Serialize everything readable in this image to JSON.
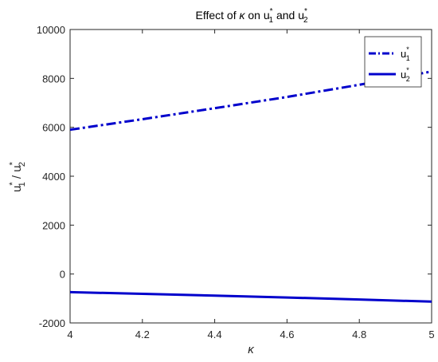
{
  "chart_data": {
    "type": "line",
    "title": {
      "main": "Effect of ",
      "symbol": "κ",
      "mid": " on u",
      "s1": "*",
      "i1": "1",
      "and": " and u",
      "s2": "*",
      "i2": "2"
    },
    "xlabel": "κ",
    "ylabel": {
      "u": "u",
      "sup1": "*",
      "sub1": "1",
      "slash": " / u",
      "sup2": "*",
      "sub2": "2"
    },
    "xlim": [
      4,
      5
    ],
    "ylim": [
      -2000,
      10000
    ],
    "xticks": [
      "4",
      "4.2",
      "4.4",
      "4.6",
      "4.8",
      "5"
    ],
    "yticks": [
      "-2000",
      "0",
      "2000",
      "4000",
      "6000",
      "8000",
      "10000"
    ],
    "x": [
      4.0,
      4.2,
      4.4,
      4.6,
      4.8,
      5.0
    ],
    "series": [
      {
        "name": "u1*",
        "values": [
          5900,
          6330,
          6780,
          7240,
          7740,
          8280
        ],
        "style": "dashdot",
        "color": "#0000cc"
      },
      {
        "name": "u2*",
        "values": [
          -740,
          -810,
          -880,
          -960,
          -1040,
          -1130
        ],
        "style": "solid",
        "color": "#0000cc"
      }
    ],
    "legend": {
      "position": "top-right",
      "entries": [
        {
          "u": "u",
          "sup": "*",
          "sub": "1"
        },
        {
          "u": "u",
          "sup": "*",
          "sub": "2"
        }
      ]
    },
    "grid": false
  }
}
